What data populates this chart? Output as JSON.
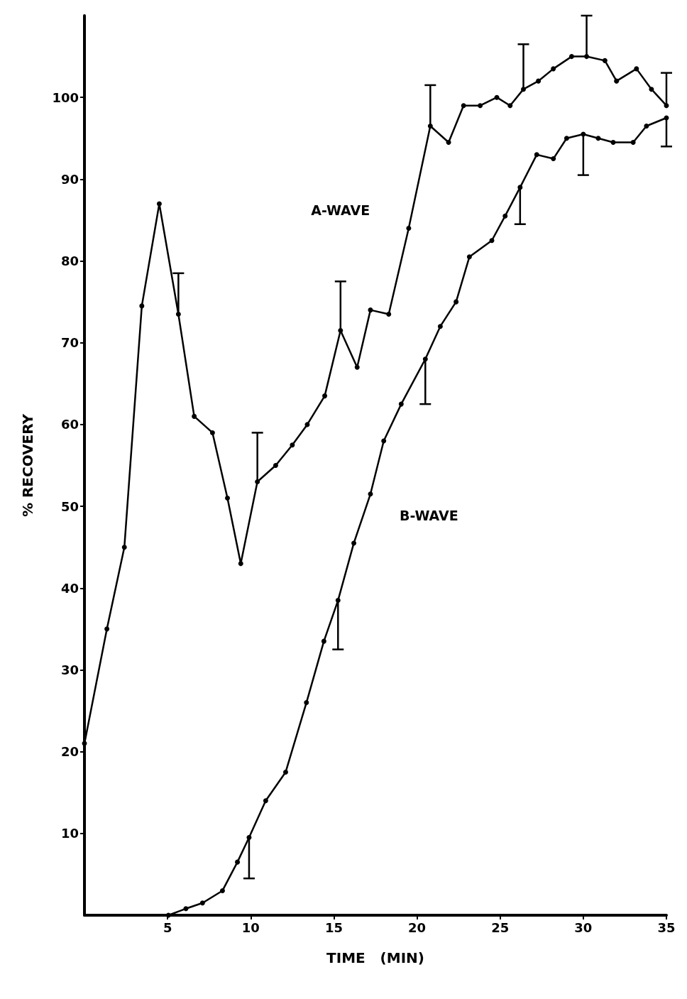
{
  "chart_data": {
    "type": "line",
    "xlabel": "TIME   (MIN)",
    "ylabel": "% RECOVERY",
    "xlim": [
      0,
      35
    ],
    "xticks": [
      5,
      10,
      15,
      20,
      25,
      30,
      35
    ],
    "ylim": [
      0,
      110
    ],
    "yticks": [
      10,
      20,
      30,
      40,
      50,
      60,
      70,
      80,
      90,
      100
    ],
    "grid": false,
    "legend": false,
    "marker": "circle",
    "line_style": "solid",
    "series": [
      {
        "name": "A-WAVE",
        "color": "#000000",
        "x": [
          0,
          1.35,
          2.4,
          3.45,
          4.5,
          5.65,
          6.6,
          7.7,
          8.6,
          9.4,
          10.4,
          11.5,
          12.5,
          13.4,
          14.45,
          15.4,
          16.4,
          17.2,
          18.3,
          19.5,
          20.8,
          21.9,
          22.8,
          23.8,
          24.8,
          25.6,
          26.4,
          27.3,
          28.2,
          29.3,
          30.2,
          31.3,
          32,
          33.2,
          34.1,
          35
        ],
        "values": [
          21,
          35,
          45,
          74.5,
          87,
          73.5,
          61,
          59,
          51,
          43,
          53,
          55,
          57.5,
          60,
          63.5,
          71.5,
          67,
          74,
          73.5,
          84,
          96.5,
          94.5,
          99,
          99,
          100,
          99,
          101,
          102,
          103.5,
          105,
          105,
          104.5,
          102,
          103.5,
          101,
          99
        ],
        "errors": [
          null,
          null,
          null,
          null,
          null,
          [
            73.5,
            78.5
          ],
          null,
          null,
          null,
          null,
          [
            53,
            59
          ],
          null,
          null,
          null,
          null,
          [
            71.5,
            77.5
          ],
          null,
          null,
          null,
          null,
          [
            96.5,
            101.5
          ],
          null,
          null,
          null,
          null,
          null,
          [
            101,
            106.5
          ],
          null,
          null,
          null,
          [
            105,
            110
          ],
          null,
          null,
          null,
          null,
          [
            99,
            103
          ]
        ]
      },
      {
        "name": "B-WAVE",
        "color": "#000000",
        "x": [
          5.05,
          6.1,
          7.1,
          8.3,
          9.2,
          9.9,
          10.9,
          12.1,
          13.35,
          14.4,
          15.25,
          16.2,
          17.2,
          18,
          19.05,
          20.5,
          21.4,
          22.35,
          23.15,
          24.5,
          25.3,
          26.2,
          27.2,
          28.2,
          29,
          30,
          30.9,
          31.8,
          33,
          33.8,
          35
        ],
        "values": [
          0,
          0.8,
          1.5,
          3,
          6.5,
          9.5,
          14,
          17.5,
          26,
          33.5,
          38.5,
          45.5,
          51.5,
          58,
          62.5,
          68,
          72,
          75,
          80.5,
          82.5,
          85.5,
          89,
          93,
          92.5,
          95,
          95.5,
          95,
          94.5,
          94.5,
          96.5,
          97.5
        ],
        "errors": [
          null,
          null,
          null,
          null,
          null,
          [
            4.5,
            9.5
          ],
          null,
          null,
          null,
          null,
          [
            32.5,
            38.5
          ],
          null,
          null,
          null,
          null,
          [
            62.5,
            68
          ],
          null,
          null,
          null,
          null,
          null,
          [
            84.5,
            89
          ],
          null,
          null,
          null,
          [
            90.5,
            95.5
          ],
          null,
          null,
          null,
          null,
          [
            94,
            97.5
          ]
        ]
      }
    ]
  }
}
